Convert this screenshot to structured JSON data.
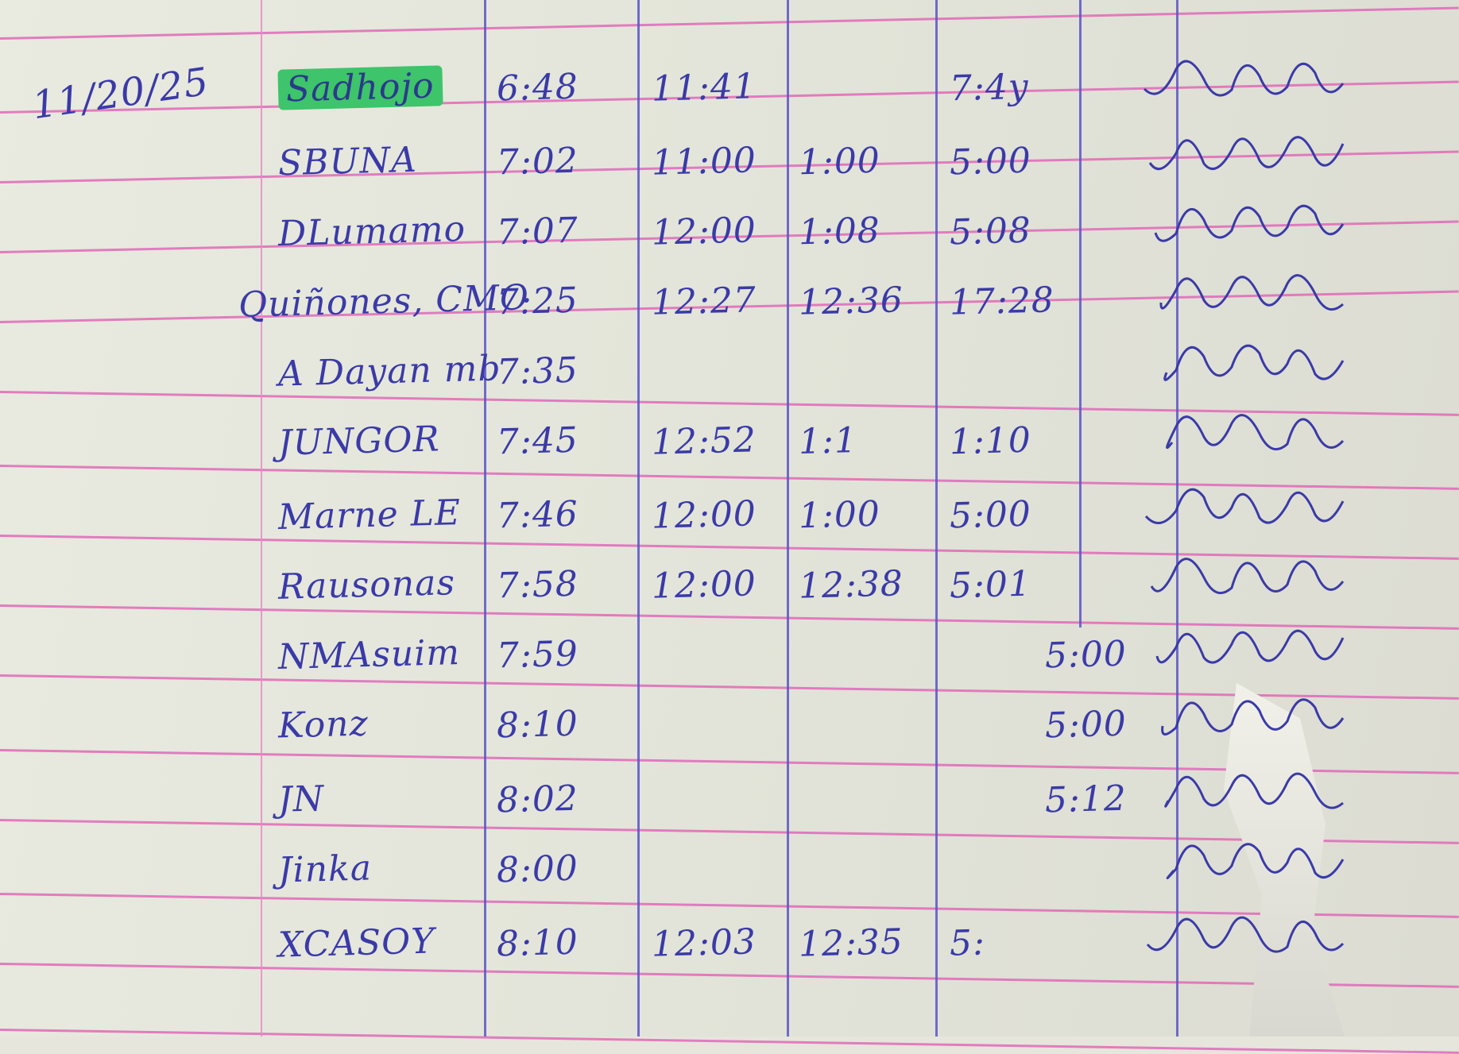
{
  "logbook": {
    "date": "11/20/25",
    "rows": [
      {
        "name": "Sadhojo",
        "time_in": "6:48",
        "lunch_out": "11:41",
        "lunch_in": "",
        "time_out": "7:4y",
        "highlighted": true
      },
      {
        "name": "SBUNA",
        "time_in": "7:02",
        "lunch_out": "11:00",
        "lunch_in": "1:00",
        "time_out": "5:00"
      },
      {
        "name": "DLumamo",
        "time_in": "7:07",
        "lunch_out": "12:00",
        "lunch_in": "1:08",
        "time_out": "5:08"
      },
      {
        "name": "Quiñones, CMO",
        "time_in": "7:25",
        "lunch_out": "12:27",
        "lunch_in": "12:36",
        "time_out": "17:28"
      },
      {
        "name": "A Dayan mb",
        "time_in": "7:35",
        "lunch_out": "",
        "lunch_in": "",
        "time_out": ""
      },
      {
        "name": "JUNGOR",
        "time_in": "7:45",
        "lunch_out": "12:52",
        "lunch_in": "1:1",
        "time_out": "1:10"
      },
      {
        "name": "Marne LE",
        "time_in": "7:46",
        "lunch_out": "12:00",
        "lunch_in": "1:00",
        "time_out": "5:00"
      },
      {
        "name": "Rausonas",
        "time_in": "7:58",
        "lunch_out": "12:00",
        "lunch_in": "12:38",
        "time_out": "5:01"
      },
      {
        "name": "NMAsuim",
        "time_in": "7:59",
        "lunch_out": "",
        "lunch_in": "",
        "time_out": "5:00"
      },
      {
        "name": "Konz",
        "time_in": "8:10",
        "lunch_out": "",
        "lunch_in": "",
        "time_out": "5:00"
      },
      {
        "name": "JN",
        "time_in": "8:02",
        "lunch_out": "",
        "lunch_in": "",
        "time_out": "5:12"
      },
      {
        "name": "Jinka",
        "time_in": "8:00",
        "lunch_out": "",
        "lunch_in": "",
        "time_out": ""
      },
      {
        "name": "XCASOY",
        "time_in": "8:10",
        "lunch_out": "12:03",
        "lunch_in": "12:35",
        "time_out": "5:"
      }
    ]
  },
  "colors": {
    "ink": "#3a3aa8",
    "rule": "#e069b8",
    "column": "#5a55c8",
    "highlight": "#3ec46a",
    "paper": "#e6e6dc"
  }
}
